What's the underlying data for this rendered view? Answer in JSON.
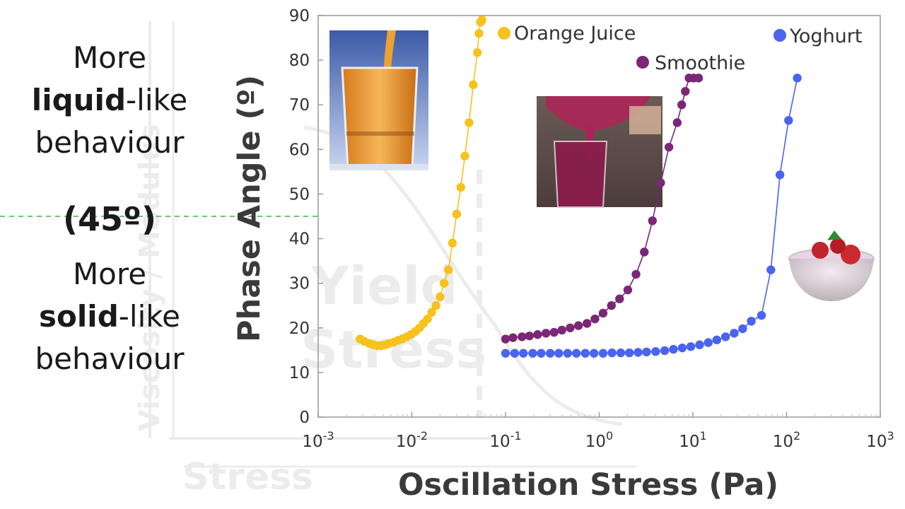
{
  "side_text": {
    "top": {
      "line1": "More",
      "line2_bold": "liquid",
      "line2_rest": "-like",
      "line3": "behaviour"
    },
    "middle": "(45º)",
    "bottom": {
      "line1": "More",
      "line2_bold": "solid",
      "line2_rest": "-like",
      "line3": "behaviour"
    }
  },
  "watermark": {
    "lines": [
      "Yield",
      "Stress"
    ],
    "axis_y": "Viscosity / Modulus",
    "axis_x": "Stress"
  },
  "colors": {
    "orange_juice": "#f6c21c",
    "smoothie": "#7b2776",
    "yoghurt": "#4a63f0",
    "reference_line": "#2fb84a",
    "axis_text": "#333333"
  },
  "chart_data": {
    "type": "scatter",
    "title": "",
    "xlabel": "Oscillation Stress (Pa)",
    "ylabel": "Phase Angle (º)",
    "x_scale": "log",
    "xlim": [
      0.001,
      1000
    ],
    "ylim": [
      0,
      90
    ],
    "x_ticks": [
      {
        "value": 0.001,
        "base": "10",
        "exp": "-3"
      },
      {
        "value": 0.01,
        "base": "10",
        "exp": "-2"
      },
      {
        "value": 0.1,
        "base": "10",
        "exp": "-1"
      },
      {
        "value": 1,
        "base": "10",
        "exp": "0"
      },
      {
        "value": 10,
        "base": "10",
        "exp": "1"
      },
      {
        "value": 100,
        "base": "10",
        "exp": "2"
      },
      {
        "value": 1000,
        "base": "10",
        "exp": "3"
      }
    ],
    "y_ticks": [
      0,
      10,
      20,
      30,
      40,
      50,
      60,
      70,
      80,
      90
    ],
    "reference_line": 45,
    "grid": false,
    "legend": "in-plot labels",
    "series": [
      {
        "name": "Orange Juice",
        "color_key": "orange_juice",
        "x": [
          0.0028,
          0.0031,
          0.0035,
          0.0039,
          0.0043,
          0.0047,
          0.0052,
          0.0057,
          0.0064,
          0.0071,
          0.0079,
          0.0088,
          0.0098,
          0.0109,
          0.0121,
          0.0133,
          0.0147,
          0.0163,
          0.0181,
          0.02,
          0.0221,
          0.0245,
          0.0271,
          0.0301,
          0.0333,
          0.0368,
          0.0408,
          0.0452,
          0.05,
          0.052,
          0.054,
          0.056
        ],
        "y": [
          17.5,
          17,
          16.5,
          16.2,
          16,
          16,
          16.2,
          16.5,
          16.8,
          17.2,
          17.5,
          18,
          18.5,
          19.2,
          20,
          21,
          22,
          23.5,
          25,
          27,
          30,
          33,
          39,
          45.5,
          51.5,
          58.5,
          66,
          74.5,
          81.7,
          86,
          88.5,
          89
        ]
      },
      {
        "name": "Smoothie",
        "color_key": "smoothie",
        "x": [
          0.1,
          0.12,
          0.15,
          0.18,
          0.22,
          0.27,
          0.33,
          0.4,
          0.49,
          0.6,
          0.74,
          0.9,
          1.1,
          1.35,
          1.65,
          2.02,
          2.47,
          3.03,
          3.7,
          4.53,
          5.55,
          6.8,
          7.6,
          8.3,
          9.1,
          10.2,
          11.5
        ],
        "y": [
          17.5,
          17.8,
          18,
          18.2,
          18.5,
          18.8,
          19,
          19.5,
          20,
          20.5,
          21,
          22,
          23.3,
          25,
          26.5,
          28.5,
          32,
          37,
          44,
          52.5,
          60.5,
          66,
          70,
          73,
          76,
          76,
          76
        ]
      },
      {
        "name": "Yoghurt",
        "color_key": "yoghurt",
        "x": [
          0.1,
          0.125,
          0.155,
          0.195,
          0.24,
          0.3,
          0.37,
          0.46,
          0.57,
          0.71,
          0.88,
          1.1,
          1.37,
          1.7,
          2.1,
          2.6,
          3.2,
          4,
          5,
          6.2,
          7.7,
          9.5,
          11.8,
          14.6,
          18,
          22.3,
          27.6,
          34,
          42,
          54,
          68,
          85,
          105,
          130
        ],
        "y": [
          14.3,
          14.3,
          14.3,
          14.3,
          14.3,
          14.3,
          14.3,
          14.3,
          14.3,
          14.3,
          14.3,
          14.3,
          14.4,
          14.4,
          14.4,
          14.5,
          14.6,
          14.7,
          14.9,
          15.2,
          15.5,
          15.8,
          16.2,
          16.7,
          17.3,
          18,
          18.8,
          19.8,
          21.5,
          22.8,
          33,
          54.3,
          66.5,
          76
        ]
      }
    ]
  }
}
